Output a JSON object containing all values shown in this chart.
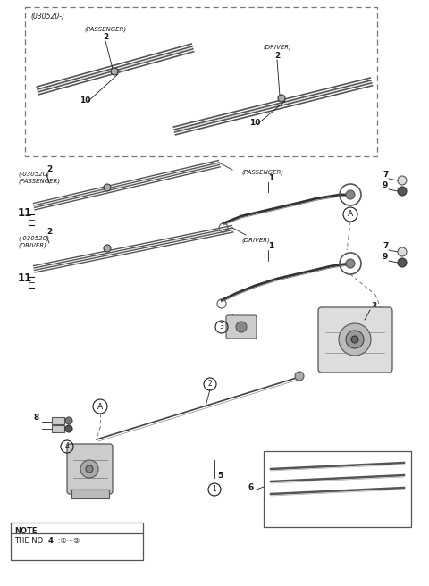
{
  "bg_color": "#ffffff",
  "line_color": "#1a1a1a",
  "fig_width": 4.8,
  "fig_height": 6.56,
  "dpi": 100,
  "labels": {
    "030520_tag": "(030520-)",
    "pass_top": "(PASSENGER)",
    "driv_top": "(DRIVER)",
    "pass_mid_tag": "(-030520)",
    "pass_mid": "(PASSENGER)",
    "driv_mid_tag": "(-030520)",
    "driv_mid": "(DRIVER)",
    "pass_arm": "(PASSENGER)",
    "driv_arm": "(DRIVER)",
    "note_line1": "NOTE",
    "note_line2": "THE NO  4 :①~⑤"
  },
  "parts": {
    "2": "2",
    "10": "10",
    "11": "11",
    "1": "1",
    "7": "7",
    "9": "9",
    "3": "3",
    "8": "8",
    "4": "4",
    "2b": "2",
    "5": "5",
    "6": "6",
    "A": "A"
  }
}
